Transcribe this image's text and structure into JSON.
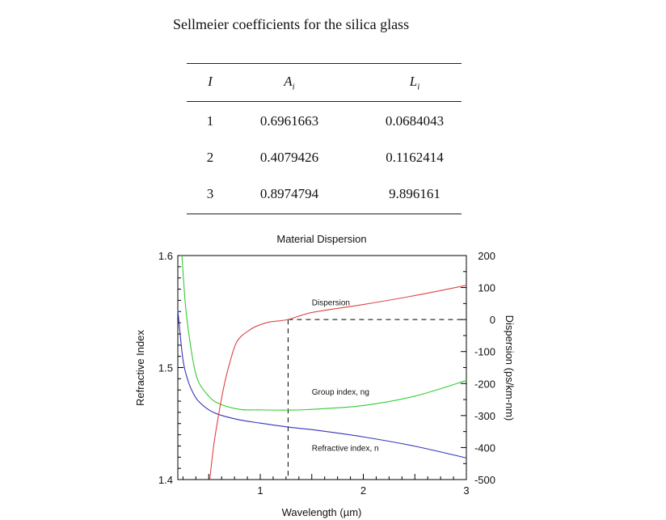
{
  "table": {
    "title": "Sellmeier coefficients for the silica glass",
    "headers": [
      {
        "main": "I",
        "sub": ""
      },
      {
        "main": "A",
        "sub": "i"
      },
      {
        "main": "L",
        "sub": "i"
      }
    ],
    "rows": [
      [
        "1",
        "0.6961663",
        "0.0684043"
      ],
      [
        "2",
        "0.4079426",
        "0.1162414"
      ],
      [
        "3",
        "0.8974794",
        "9.896161"
      ]
    ]
  },
  "chart_data": {
    "type": "line",
    "title": "Material Dispersion",
    "xlabel": "Wavelength (µm)",
    "ylabel": "Refractive Index",
    "y2label": "Dispersion (ps/km-nm)",
    "xlim": [
      0.2,
      3
    ],
    "ylim": [
      1.4,
      1.6
    ],
    "y2lim": [
      -500,
      200
    ],
    "xticks": [
      "1",
      "2",
      "3"
    ],
    "yticks": [
      "1.4",
      "1.5",
      "1.6"
    ],
    "y2ticks": [
      "-500",
      "-400",
      "-300",
      "-200",
      "-100",
      "0",
      "100",
      "200"
    ],
    "grid": false,
    "series": [
      {
        "name": "Refractive index, n",
        "axis": "left",
        "color": "#3333bb",
        "x": [
          0.2,
          0.25,
          0.3,
          0.35,
          0.4,
          0.5,
          0.6,
          0.8,
          1.0,
          1.27,
          1.55,
          2.0,
          2.5,
          3.0
        ],
        "y": [
          1.551,
          1.507,
          1.488,
          1.477,
          1.47,
          1.4623,
          1.458,
          1.4533,
          1.4504,
          1.4469,
          1.444,
          1.4381,
          1.4298,
          1.4193
        ]
      },
      {
        "name": "Group index, ng",
        "axis": "left",
        "color": "#33cc33",
        "x": [
          0.24,
          0.27,
          0.3,
          0.35,
          0.4,
          0.5,
          0.6,
          0.8,
          1.0,
          1.27,
          1.5,
          2.0,
          2.5,
          3.0
        ],
        "y": [
          1.6,
          1.56,
          1.535,
          1.505,
          1.4874,
          1.4745,
          1.4678,
          1.4627,
          1.4622,
          1.462,
          1.4627,
          1.4661,
          1.4745,
          1.4885
        ]
      },
      {
        "name": "Dispersion",
        "axis": "right",
        "color": "#dd4444",
        "x": [
          0.51,
          0.55,
          0.6,
          0.65,
          0.7,
          0.775,
          0.9,
          1.0,
          1.1,
          1.27,
          1.5,
          2.0,
          2.5,
          3.0
        ],
        "y": [
          -500,
          -390,
          -290,
          -205,
          -140,
          -68,
          -32,
          -16,
          -7,
          0,
          22,
          47,
          75,
          107
        ]
      }
    ],
    "annotations": [
      {
        "text": "Dispersion",
        "x": 1.5,
        "y2": 55
      },
      {
        "text": "Group index, ng",
        "x": 1.5,
        "y2": -225
      },
      {
        "text": "Refractive index, n",
        "x": 1.5,
        "y2": -400
      }
    ],
    "zero_dispersion_wavelength": 1.27
  }
}
